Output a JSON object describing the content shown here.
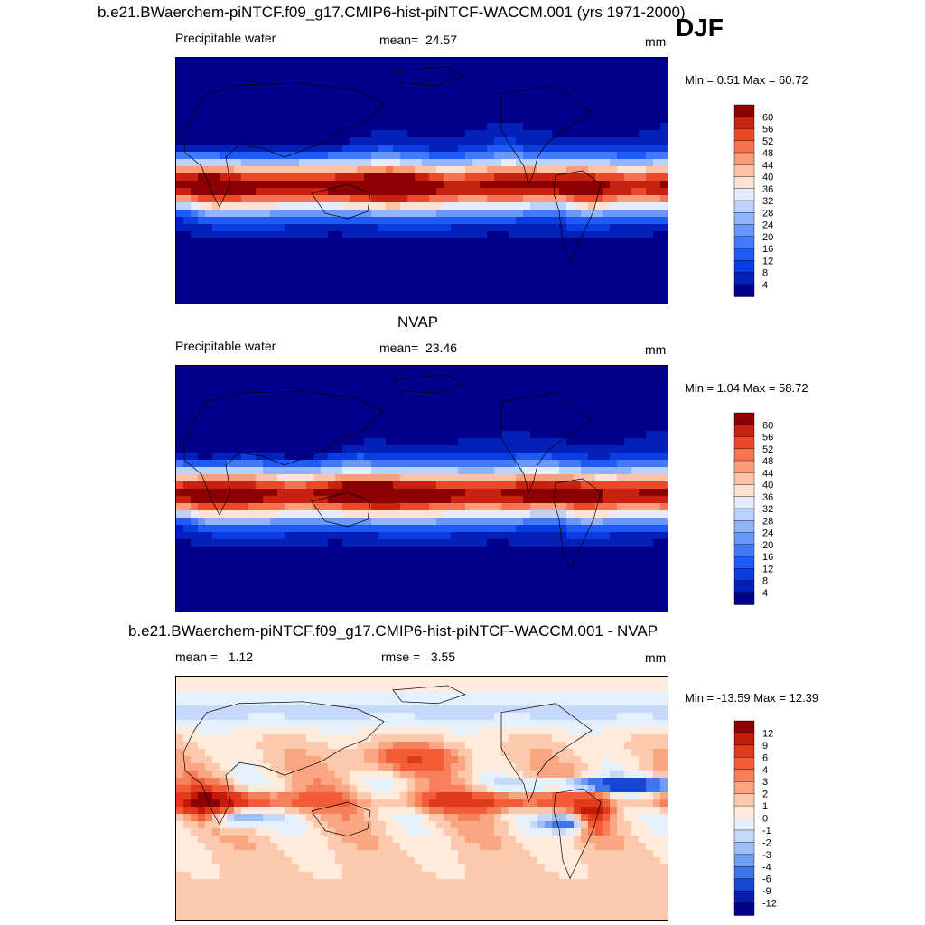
{
  "figure": {
    "main_title": "b.e21.BWaerchem-piNTCF.f09_g17.CMIP6-hist-piNTCF-WACCM.001 (yrs 1971-2000)",
    "season": "DJF"
  },
  "chart_data": [
    {
      "type": "heatmap",
      "title": "",
      "variable": "Precipitable water",
      "stat_label": "mean=",
      "stat_value": "24.57",
      "units": "mm",
      "minmax_text": "Min =   0.51 Max =  60.72",
      "min": 0.51,
      "max": 60.72,
      "colorbar": {
        "levels": [
          "4",
          "8",
          "12",
          "16",
          "20",
          "24",
          "28",
          "32",
          "36",
          "40",
          "44",
          "48",
          "52",
          "56",
          "60"
        ],
        "colors": [
          "#00008b",
          "#0420b8",
          "#0a3de0",
          "#1e5af5",
          "#4279f8",
          "#6a97fa",
          "#92b4fb",
          "#bcd2fd",
          "#e4ecfe",
          "#fde3d3",
          "#fcc3a6",
          "#fb9d7a",
          "#f57350",
          "#e84a2a",
          "#c82310",
          "#8b0000"
        ]
      }
    },
    {
      "type": "heatmap",
      "title": "NVAP",
      "variable": "Precipitable water",
      "stat_label": "mean=",
      "stat_value": "23.46",
      "units": "mm",
      "minmax_text": "Min =   1.04 Max =  58.72",
      "min": 1.04,
      "max": 58.72,
      "colorbar": {
        "levels": [
          "4",
          "8",
          "12",
          "16",
          "20",
          "24",
          "28",
          "32",
          "36",
          "40",
          "44",
          "48",
          "52",
          "56",
          "60"
        ],
        "colors": [
          "#00008b",
          "#0420b8",
          "#0a3de0",
          "#1e5af5",
          "#4279f8",
          "#6a97fa",
          "#92b4fb",
          "#bcd2fd",
          "#e4ecfe",
          "#fde3d3",
          "#fcc3a6",
          "#fb9d7a",
          "#f57350",
          "#e84a2a",
          "#c82310",
          "#8b0000"
        ]
      }
    },
    {
      "type": "heatmap",
      "title": "b.e21.BWaerchem-piNTCF.f09_g17.CMIP6-hist-piNTCF-WACCM.001 - NVAP",
      "stat_label": "mean =",
      "stat_value": "1.12",
      "stat2_label": "rmse =",
      "stat2_value": "3.55",
      "units": "mm",
      "minmax_text": "Min = -13.59 Max =  12.39",
      "min": -13.59,
      "max": 12.39,
      "colorbar": {
        "levels": [
          "12",
          "9",
          "6",
          "4",
          "3",
          "2",
          "1",
          "0",
          "-1",
          "-2",
          "-3",
          "-4",
          "-6",
          "-9",
          "-12"
        ],
        "colors": [
          "#8b0000",
          "#c41a0a",
          "#e03a1c",
          "#f25c36",
          "#f7805a",
          "#fba582",
          "#fdc9ad",
          "#feebdc",
          "#e6f0fd",
          "#c5d9fb",
          "#9ebef8",
          "#6f9cf4",
          "#3f74ea",
          "#1748d4",
          "#061fb0",
          "#00008b"
        ]
      }
    }
  ]
}
